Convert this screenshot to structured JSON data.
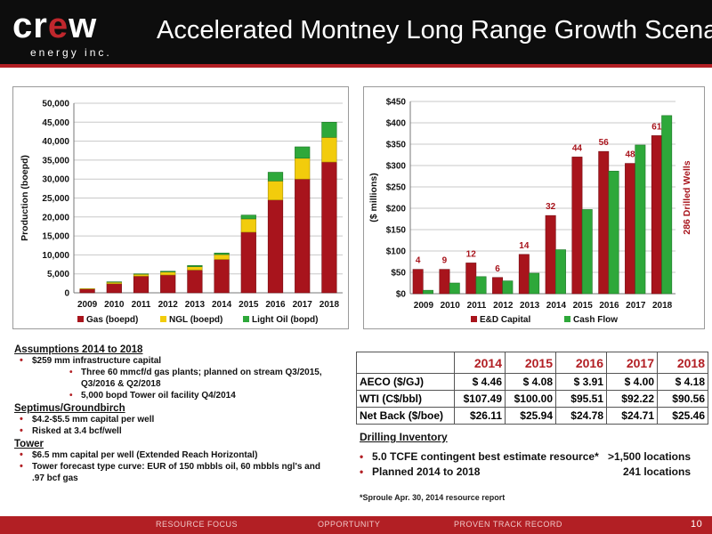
{
  "header": {
    "logo_word_a": "cr",
    "logo_word_e": "e",
    "logo_word_b": "w",
    "logo_sub": "energy inc.",
    "title": "Accelerated Montney Long Range Growth Scenario"
  },
  "colors": {
    "gas": "#a8141c",
    "ngl": "#f2cc0c",
    "oil": "#2ea83a",
    "capex": "#a8141c",
    "cashflow": "#2ea83a",
    "accent": "#b21f24"
  },
  "chart_data": [
    {
      "type": "bar",
      "stacked": true,
      "categories": [
        "2009",
        "2010",
        "2011",
        "2012",
        "2013",
        "2014",
        "2015",
        "2016",
        "2017",
        "2018"
      ],
      "series": [
        {
          "name": "Gas (boepd)",
          "values": [
            1000,
            2400,
            4400,
            4700,
            6000,
            8800,
            16000,
            24500,
            30000,
            34500
          ]
        },
        {
          "name": "NGL (boepd)",
          "values": [
            100,
            400,
            500,
            800,
            900,
            1300,
            3500,
            5000,
            5500,
            6500
          ]
        },
        {
          "name": "Light Oil (bopd)",
          "values": [
            0,
            100,
            100,
            200,
            300,
            400,
            1000,
            2300,
            3000,
            4000
          ]
        }
      ],
      "ylabel": "Production (boepd)",
      "ylim": [
        0,
        50000
      ],
      "yticks": [
        "0",
        "5,000",
        "10,000",
        "15,000",
        "20,000",
        "25,000",
        "30,000",
        "35,000",
        "40,000",
        "45,000",
        "50,000"
      ],
      "grid": true,
      "legend": "bottom"
    },
    {
      "type": "bar",
      "categories": [
        "2009",
        "2010",
        "2011",
        "2012",
        "2013",
        "2014",
        "2015",
        "2016",
        "2017",
        "2018"
      ],
      "series": [
        {
          "name": "E&D Capital",
          "values": [
            57,
            57,
            72,
            38,
            92,
            183,
            320,
            333,
            305,
            370
          ]
        },
        {
          "name": "Cash Flow",
          "values": [
            8,
            25,
            40,
            30,
            48,
            103,
            197,
            287,
            348,
            417
          ]
        }
      ],
      "data_labels": [
        "4",
        "9",
        "12",
        "6",
        "14",
        "32",
        "44",
        "56",
        "48",
        "61"
      ],
      "ylabel": "($ millions)",
      "right_label": "286 Drilled Wells",
      "ylim": [
        0,
        450
      ],
      "yticks": [
        "$0",
        "$50",
        "$100",
        "$150",
        "$200",
        "$250",
        "$300",
        "$350",
        "$400",
        "$450"
      ],
      "grid": true,
      "legend": "bottom"
    }
  ],
  "assumptions": {
    "heading": "Assumptions 2014 to 2018",
    "b1": "$259 mm infrastructure capital",
    "b1a": "Three 60 mmcf/d gas plants; planned on stream Q3/2015,",
    "b1a2": "Q3/2016 & Q2/2018",
    "b1b": "5,000 bopd Tower oil facility Q4/2014",
    "heading2": "Septimus/Groundbirch",
    "b2": "$4.2-$5.5 mm capital per well",
    "b3": "Risked at 3.4 bcf/well",
    "heading3": "Tower",
    "b4": "$6.5 mm capital per well (Extended Reach Horizontal)",
    "b5": "Tower forecast type curve: EUR of 150 mbbls oil, 60 mbbls ngl's and",
    "b5b": ".97 bcf gas"
  },
  "prices": {
    "years": [
      "2014",
      "2015",
      "2016",
      "2017",
      "2018"
    ],
    "rows": [
      {
        "label": "AECO ($/GJ)",
        "values": [
          "$  4.46",
          "$  4.08",
          "$  3.91",
          "$  4.00",
          "$  4.18"
        ]
      },
      {
        "label": "WTI (C$/bbl)",
        "values": [
          "$107.49",
          "$100.00",
          "$95.51",
          "$92.22",
          "$90.56"
        ]
      },
      {
        "label": "Net Back ($/boe)",
        "values": [
          "$26.11",
          "$25.94",
          "$24.78",
          "$24.71",
          "$25.46"
        ]
      }
    ]
  },
  "drilling": {
    "heading": "Drilling Inventory",
    "r1_label": "5.0 TCFE contingent best estimate resource*",
    "r1_value": ">1,500 locations",
    "r2_label": "Planned 2014 to 2018",
    "r2_value": "241 locations"
  },
  "footnote": "*Sproule  Apr. 30, 2014 resource report",
  "footer": {
    "a": "RESOURCE FOCUS",
    "b": "OPPORTUNITY",
    "c": "PROVEN TRACK RECORD",
    "page": "10"
  }
}
